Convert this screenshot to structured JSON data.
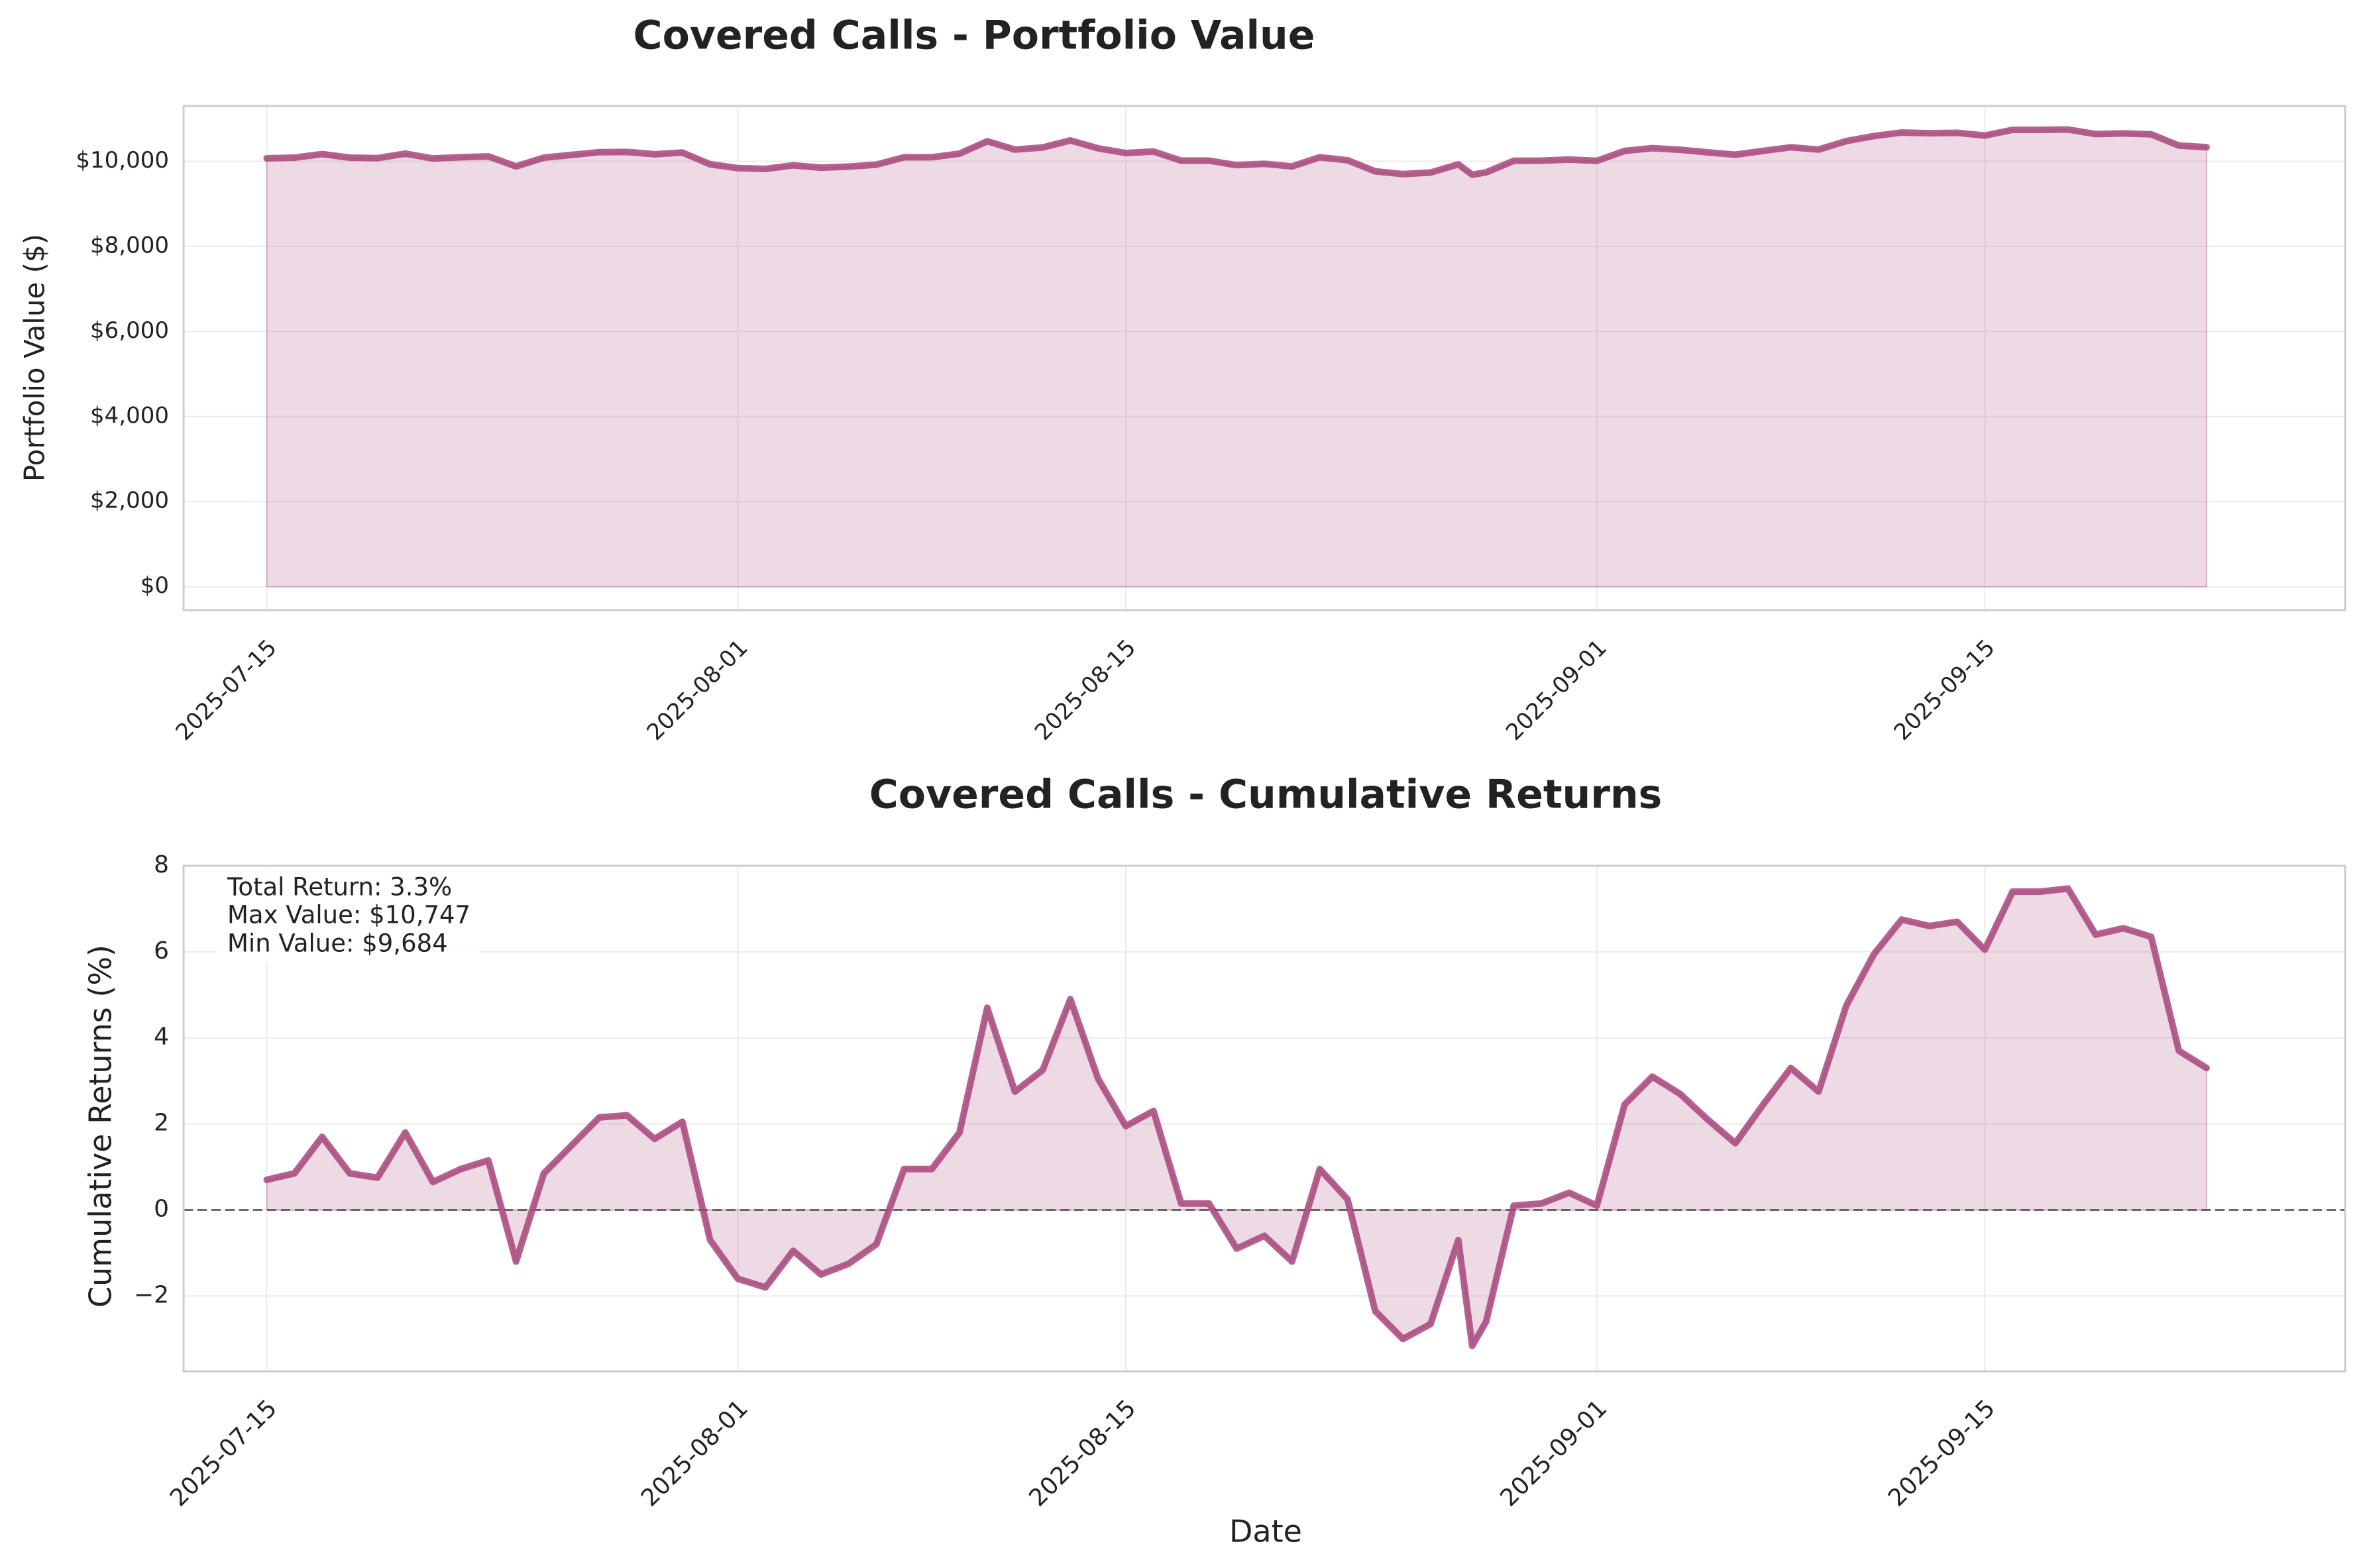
{
  "chart_data": [
    {
      "type": "area",
      "title": "Covered Calls - Portfolio Value",
      "xlabel": "",
      "ylabel": "Portfolio Value ($)",
      "ylim": [
        -550,
        11300
      ],
      "xlim": [
        "2025-07-12",
        "2025-09-28"
      ],
      "grid": true,
      "yticks": [
        {
          "value": 0,
          "label": "$0"
        },
        {
          "value": 2000,
          "label": "$2,000"
        },
        {
          "value": 4000,
          "label": "$4,000"
        },
        {
          "value": 6000,
          "label": "$6,000"
        },
        {
          "value": 8000,
          "label": "$8,000"
        },
        {
          "value": 10000,
          "label": "$10,000"
        }
      ],
      "xticks": [
        {
          "date": "2025-07-15",
          "label": "2025-07-15"
        },
        {
          "date": "2025-08-01",
          "label": "2025-08-01"
        },
        {
          "date": "2025-08-15",
          "label": "2025-08-15"
        },
        {
          "date": "2025-09-01",
          "label": "2025-09-01"
        },
        {
          "date": "2025-09-15",
          "label": "2025-09-15"
        }
      ],
      "x": [
        "2025-07-15",
        "2025-07-16",
        "2025-07-17",
        "2025-07-18",
        "2025-07-19",
        "2025-07-20",
        "2025-07-21",
        "2025-07-22",
        "2025-07-23",
        "2025-07-24",
        "2025-07-25",
        "2025-07-26",
        "2025-07-27",
        "2025-07-28",
        "2025-07-29",
        "2025-07-30",
        "2025-07-31",
        "2025-08-01",
        "2025-08-02",
        "2025-08-03",
        "2025-08-04",
        "2025-08-05",
        "2025-08-06",
        "2025-08-07",
        "2025-08-08",
        "2025-08-09",
        "2025-08-10",
        "2025-08-11",
        "2025-08-12",
        "2025-08-13",
        "2025-08-14",
        "2025-08-15",
        "2025-08-16",
        "2025-08-17",
        "2025-08-18",
        "2025-08-19",
        "2025-08-20",
        "2025-08-21",
        "2025-08-22",
        "2025-08-23",
        "2025-08-24",
        "2025-08-25",
        "2025-08-26",
        "2025-08-27",
        "2025-08-27T12:00",
        "2025-08-28",
        "2025-08-29",
        "2025-08-30",
        "2025-08-31",
        "2025-09-01",
        "2025-09-02",
        "2025-09-03",
        "2025-09-04",
        "2025-09-05",
        "2025-09-06",
        "2025-09-07",
        "2025-09-08",
        "2025-09-09",
        "2025-09-10",
        "2025-09-11",
        "2025-09-12",
        "2025-09-13",
        "2025-09-14",
        "2025-09-15",
        "2025-09-16",
        "2025-09-17",
        "2025-09-18",
        "2025-09-19",
        "2025-09-20",
        "2025-09-21",
        "2025-09-22",
        "2025-09-23"
      ],
      "series": [
        {
          "color": "#A8457B",
          "values": [
            10070,
            10085,
            10170,
            10085,
            10075,
            10180,
            10065,
            10095,
            10115,
            9880,
            10085,
            10150,
            10215,
            10220,
            10165,
            10205,
            9930,
            9840,
            9820,
            9905,
            9850,
            9875,
            9920,
            10095,
            10095,
            10180,
            10470,
            10275,
            10325,
            10490,
            10305,
            10195,
            10230,
            10015,
            10015,
            9910,
            9940,
            9880,
            10095,
            10025,
            9765,
            9700,
            9735,
            9930,
            9684,
            9740,
            10010,
            10015,
            10040,
            10010,
            10245,
            10310,
            10270,
            10210,
            10155,
            10245,
            10330,
            10275,
            10475,
            10595,
            10675,
            10660,
            10670,
            10605,
            10740,
            10740,
            10747,
            10640,
            10655,
            10635,
            10370,
            10330
          ]
        }
      ]
    },
    {
      "type": "area",
      "title": "Covered Calls - Cumulative Returns",
      "xlabel": "Date",
      "ylabel": "Cumulative Returns (%)",
      "ylim": [
        -3.75,
        8
      ],
      "xlim": [
        "2025-07-12",
        "2025-09-28"
      ],
      "grid": true,
      "zero_line": true,
      "yticks": [
        {
          "value": -2,
          "label": "−2"
        },
        {
          "value": 0,
          "label": "0"
        },
        {
          "value": 2,
          "label": "2"
        },
        {
          "value": 4,
          "label": "4"
        },
        {
          "value": 6,
          "label": "6"
        },
        {
          "value": 8,
          "label": "8"
        }
      ],
      "xticks": [
        {
          "date": "2025-07-15",
          "label": "2025-07-15"
        },
        {
          "date": "2025-08-01",
          "label": "2025-08-01"
        },
        {
          "date": "2025-08-15",
          "label": "2025-08-15"
        },
        {
          "date": "2025-09-01",
          "label": "2025-09-01"
        },
        {
          "date": "2025-09-15",
          "label": "2025-09-15"
        }
      ],
      "x": [
        "2025-07-15",
        "2025-07-16",
        "2025-07-17",
        "2025-07-18",
        "2025-07-19",
        "2025-07-20",
        "2025-07-21",
        "2025-07-22",
        "2025-07-23",
        "2025-07-24",
        "2025-07-25",
        "2025-07-26",
        "2025-07-27",
        "2025-07-28",
        "2025-07-29",
        "2025-07-30",
        "2025-07-31",
        "2025-08-01",
        "2025-08-02",
        "2025-08-03",
        "2025-08-04",
        "2025-08-05",
        "2025-08-06",
        "2025-08-07",
        "2025-08-08",
        "2025-08-09",
        "2025-08-10",
        "2025-08-11",
        "2025-08-12",
        "2025-08-13",
        "2025-08-14",
        "2025-08-15",
        "2025-08-16",
        "2025-08-17",
        "2025-08-18",
        "2025-08-19",
        "2025-08-20",
        "2025-08-21",
        "2025-08-22",
        "2025-08-23",
        "2025-08-24",
        "2025-08-25",
        "2025-08-26",
        "2025-08-27",
        "2025-08-27T12:00",
        "2025-08-28",
        "2025-08-29",
        "2025-08-30",
        "2025-08-31",
        "2025-09-01",
        "2025-09-02",
        "2025-09-03",
        "2025-09-04",
        "2025-09-05",
        "2025-09-06",
        "2025-09-07",
        "2025-09-08",
        "2025-09-09",
        "2025-09-10",
        "2025-09-11",
        "2025-09-12",
        "2025-09-13",
        "2025-09-14",
        "2025-09-15",
        "2025-09-16",
        "2025-09-17",
        "2025-09-18",
        "2025-09-19",
        "2025-09-20",
        "2025-09-21",
        "2025-09-22",
        "2025-09-23"
      ],
      "series": [
        {
          "color": "#A8457B",
          "values": [
            0.7,
            0.85,
            1.7,
            0.85,
            0.75,
            1.8,
            0.65,
            0.95,
            1.15,
            -1.2,
            0.85,
            1.5,
            2.15,
            2.2,
            1.65,
            2.05,
            -0.7,
            -1.6,
            -1.8,
            -0.95,
            -1.5,
            -1.25,
            -0.8,
            0.95,
            0.95,
            1.8,
            4.7,
            2.75,
            3.25,
            4.9,
            3.05,
            1.95,
            2.3,
            0.15,
            0.15,
            -0.9,
            -0.6,
            -1.2,
            0.95,
            0.25,
            -2.35,
            -3.0,
            -2.65,
            -0.7,
            -3.16,
            -2.6,
            0.1,
            0.15,
            0.4,
            0.1,
            2.45,
            3.1,
            2.7,
            2.1,
            1.55,
            2.45,
            3.3,
            2.75,
            4.75,
            5.95,
            6.75,
            6.6,
            6.7,
            6.05,
            7.4,
            7.4,
            7.47,
            6.4,
            6.55,
            6.35,
            3.7,
            3.3
          ]
        }
      ],
      "stats_box": {
        "lines": [
          "Total Return: 3.3%",
          "Max Value: $10,747",
          "Min Value: $9,684"
        ]
      }
    }
  ]
}
